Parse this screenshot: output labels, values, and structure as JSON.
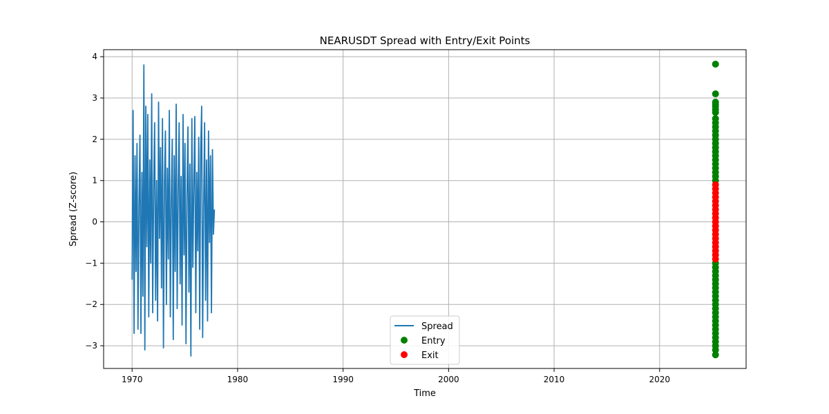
{
  "chart_data": {
    "type": "line",
    "title": "NEARUSDT Spread with Entry/Exit Points",
    "xlabel": "Time",
    "ylabel": "Spread (Z-score)",
    "xlim": [
      1967.3,
      2028.2
    ],
    "ylim": [
      -3.55,
      4.17
    ],
    "x_ticks": [
      1970,
      1980,
      1990,
      2000,
      2010,
      2020
    ],
    "y_ticks": [
      -3,
      -2,
      -1,
      0,
      1,
      2,
      3,
      4
    ],
    "grid": true,
    "legend_position": "lower center",
    "series": [
      {
        "name": "Spread",
        "kind": "line",
        "color": "#1f77b4",
        "x_range": [
          1970.0,
          1977.8
        ],
        "values": [
          -1.4,
          2.7,
          -2.7,
          1.6,
          -1.2,
          1.9,
          -2.6,
          0.4,
          2.1,
          -2.7,
          1.2,
          -1.8,
          3.8,
          -3.1,
          2.8,
          -0.6,
          2.6,
          -2.3,
          1.5,
          -1.0,
          3.1,
          -2.2,
          0.8,
          2.4,
          -1.9,
          1.0,
          -2.4,
          2.9,
          -0.4,
          1.8,
          -1.6,
          2.5,
          -3.05,
          0.9,
          2.2,
          -2.0,
          1.3,
          -0.9,
          2.7,
          -2.3,
          0.5,
          2.0,
          -2.85,
          1.6,
          -1.2,
          2.85,
          -2.1,
          0.7,
          2.4,
          -1.5,
          1.1,
          -2.5,
          2.6,
          -0.8,
          1.9,
          -2.95,
          0.6,
          2.3,
          -1.7,
          1.4,
          -3.25,
          2.5,
          -1.1,
          0.9,
          2.55,
          -2.2,
          1.2,
          -0.7,
          2.05,
          -2.6,
          1.7,
          2.8,
          -2.8,
          0.3,
          2.4,
          -1.9,
          1.5,
          -2.4,
          2.2,
          -0.5,
          1.6,
          -2.2,
          1.75,
          -0.3,
          0.3
        ]
      },
      {
        "name": "Entry",
        "kind": "scatter",
        "color": "#008000",
        "x": 2025.3,
        "y": [
          3.82,
          3.1,
          2.9,
          2.85,
          2.8,
          2.72,
          2.65,
          2.5,
          2.4,
          2.3,
          2.2,
          2.1,
          2.0,
          1.9,
          1.8,
          1.7,
          1.6,
          1.5,
          1.4,
          1.3,
          1.2,
          1.1,
          1.0,
          -1.0,
          -1.1,
          -1.2,
          -1.3,
          -1.4,
          -1.5,
          -1.6,
          -1.7,
          -1.8,
          -1.9,
          -2.0,
          -2.1,
          -2.2,
          -2.3,
          -2.4,
          -2.5,
          -2.6,
          -2.7,
          -2.8,
          -2.9,
          -3.0,
          -3.1,
          -3.22
        ]
      },
      {
        "name": "Exit",
        "kind": "scatter",
        "color": "#ff0000",
        "x": 2025.3,
        "y": [
          0.9,
          0.8,
          0.7,
          0.6,
          0.5,
          0.4,
          0.3,
          0.2,
          0.1,
          0.0,
          -0.1,
          -0.2,
          -0.3,
          -0.4,
          -0.5,
          -0.6,
          -0.7,
          -0.8,
          -0.9
        ]
      }
    ]
  }
}
